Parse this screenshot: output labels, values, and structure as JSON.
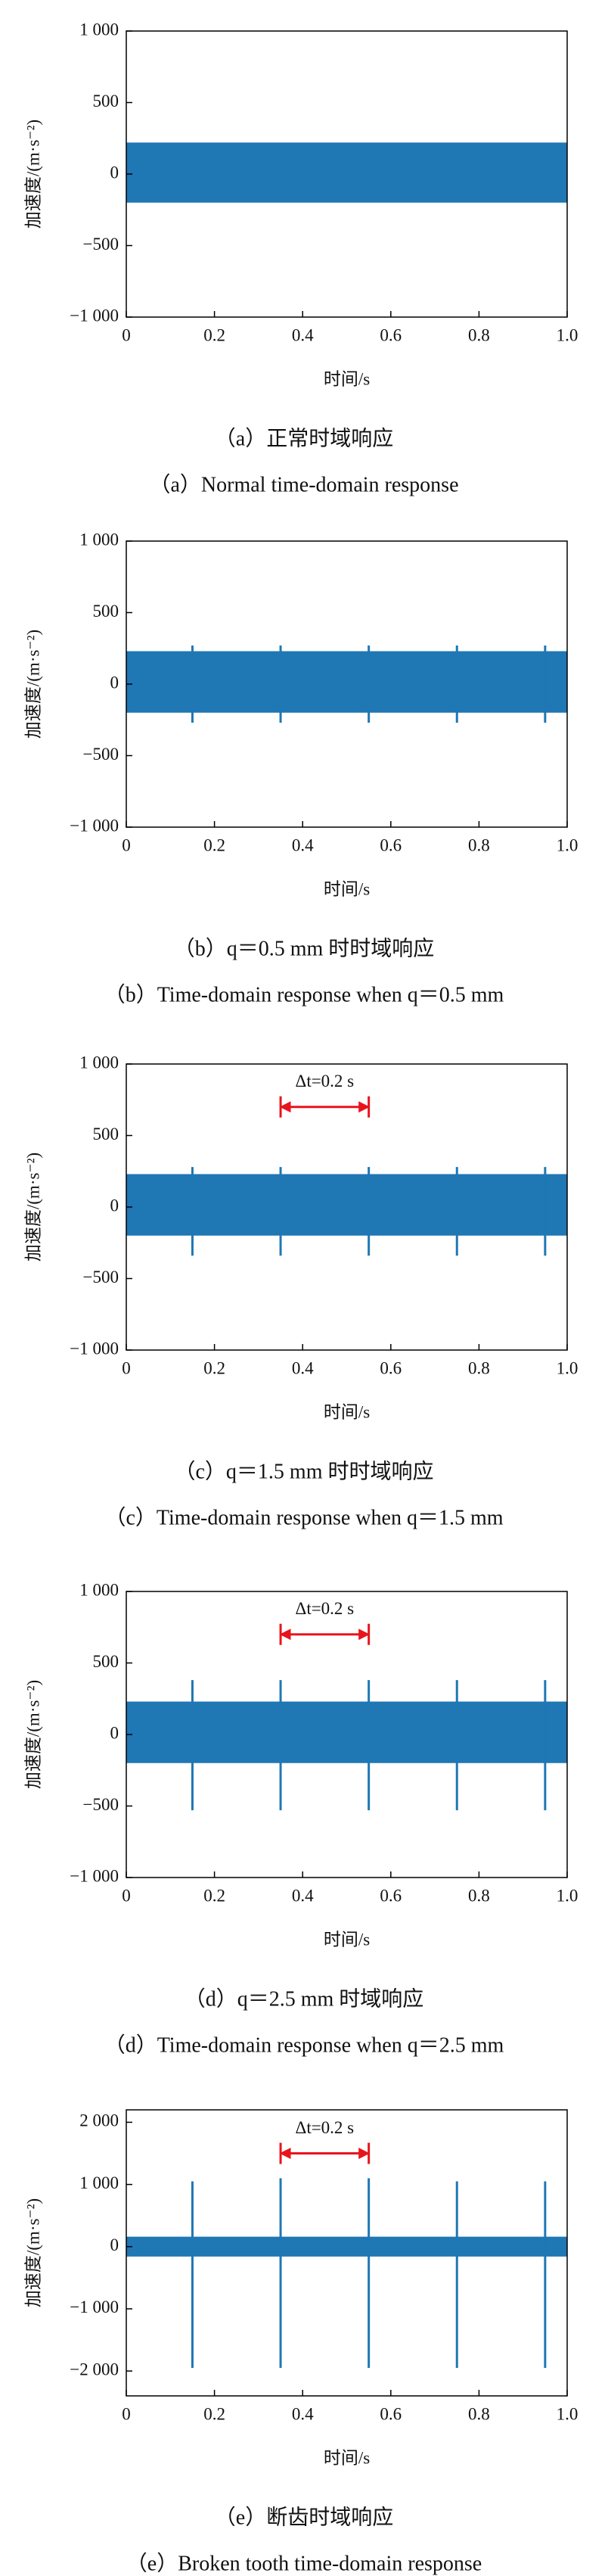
{
  "chart_data": [
    {
      "type": "line",
      "title": "（a）正常时域响应",
      "subtitle": "（a）Normal time-domain response",
      "x_label": "时间/s",
      "y_label": "加速度/(m·s⁻²)",
      "color": "#1f77b4",
      "xlim": [
        0,
        1
      ],
      "xticks": [
        0,
        0.2,
        0.4,
        0.6,
        0.8,
        {
          "value": 1,
          "label": "1.0"
        }
      ],
      "ylim": [
        -1000,
        1000
      ],
      "yticks": [
        {
          "value": -1000,
          "label": "−1 000"
        },
        {
          "value": -500,
          "label": "−500"
        },
        0,
        500,
        {
          "value": 1000,
          "label": "1 000"
        }
      ],
      "band": {
        "x": [
          0,
          1
        ],
        "upper": [
          220,
          220
        ],
        "lower": [
          -200,
          -200
        ]
      }
    },
    {
      "type": "line",
      "title": "（b）q＝0.5 mm 时时域响应",
      "subtitle": "（b）Time-domain response when q＝0.5 mm",
      "x_label": "时间/s",
      "y_label": "加速度/(m·s⁻²)",
      "color": "#1f77b4",
      "xlim": [
        0,
        1
      ],
      "xticks": [
        0,
        0.2,
        0.4,
        0.6,
        0.8,
        {
          "value": 1,
          "label": "1.0"
        }
      ],
      "ylim": [
        -1000,
        1000
      ],
      "yticks": [
        {
          "value": -1000,
          "label": "−1 000"
        },
        {
          "value": -500,
          "label": "−500"
        },
        0,
        500,
        {
          "value": 1000,
          "label": "1 000"
        }
      ],
      "band": {
        "x": [
          0,
          1
        ],
        "upper": [
          230,
          230
        ],
        "lower": [
          -200,
          -200
        ]
      },
      "spikes": {
        "x": [
          0.15,
          0.35,
          0.55,
          0.75,
          0.95
        ],
        "upper": [
          270,
          270,
          270,
          270,
          270
        ],
        "lower": [
          -270,
          -270,
          -270,
          -270,
          -270
        ]
      }
    },
    {
      "type": "line",
      "title": "（c）q＝1.5 mm 时时域响应",
      "subtitle": "（c）Time-domain response when q＝1.5 mm",
      "x_label": "时间/s",
      "y_label": "加速度/(m·s⁻²)",
      "color": "#1f77b4",
      "xlim": [
        0,
        1
      ],
      "xticks": [
        0,
        0.2,
        0.4,
        0.6,
        0.8,
        {
          "value": 1,
          "label": "1.0"
        }
      ],
      "ylim": [
        -1000,
        1000
      ],
      "yticks": [
        {
          "value": -1000,
          "label": "−1 000"
        },
        {
          "value": -500,
          "label": "−500"
        },
        0,
        500,
        {
          "value": 1000,
          "label": "1 000"
        }
      ],
      "band": {
        "x": [
          0,
          1
        ],
        "upper": [
          230,
          230
        ],
        "lower": [
          -200,
          -200
        ]
      },
      "spikes": {
        "x": [
          0.15,
          0.35,
          0.55,
          0.75,
          0.95
        ],
        "upper": [
          280,
          280,
          280,
          280,
          280
        ],
        "lower": [
          -340,
          -340,
          -340,
          -340,
          -340
        ]
      },
      "annotation": {
        "text": "Δt=0.2 s",
        "x": [
          0.35,
          0.55
        ],
        "y": 700
      }
    },
    {
      "type": "line",
      "title": "（d）q＝2.5 mm 时域响应",
      "subtitle": "（d）Time-domain response when q＝2.5 mm",
      "x_label": "时间/s",
      "y_label": "加速度/(m·s⁻²)",
      "color": "#1f77b4",
      "xlim": [
        0,
        1
      ],
      "xticks": [
        0,
        0.2,
        0.4,
        0.6,
        0.8,
        {
          "value": 1,
          "label": "1.0"
        }
      ],
      "ylim": [
        -1000,
        1000
      ],
      "yticks": [
        {
          "value": -1000,
          "label": "−1 000"
        },
        {
          "value": -500,
          "label": "−500"
        },
        0,
        500,
        {
          "value": 1000,
          "label": "1 000"
        }
      ],
      "band": {
        "x": [
          0,
          1
        ],
        "upper": [
          230,
          230
        ],
        "lower": [
          -200,
          -200
        ]
      },
      "spikes": {
        "x": [
          0.15,
          0.35,
          0.55,
          0.75,
          0.95
        ],
        "upper": [
          380,
          380,
          380,
          380,
          380
        ],
        "lower": [
          -530,
          -530,
          -530,
          -530,
          -530
        ]
      },
      "annotation": {
        "text": "Δt=0.2 s",
        "x": [
          0.35,
          0.55
        ],
        "y": 700
      }
    },
    {
      "type": "line",
      "title": "（e）断齿时域响应",
      "subtitle": "（e）Broken tooth time-domain response",
      "x_label": "时间/s",
      "y_label": "加速度/(m·s⁻²)",
      "color": "#1f77b4",
      "xlim": [
        0,
        1
      ],
      "xticks": [
        0,
        0.2,
        0.4,
        0.6,
        0.8,
        {
          "value": 1,
          "label": "1.0"
        }
      ],
      "ylim": [
        -2400,
        2200
      ],
      "yticks": [
        {
          "value": -2000,
          "label": "−2 000"
        },
        {
          "value": -1000,
          "label": "−1 000"
        },
        0,
        {
          "value": 1000,
          "label": "1 000"
        },
        {
          "value": 2000,
          "label": "2 000"
        }
      ],
      "band": {
        "x": [
          0,
          1
        ],
        "upper": [
          160,
          160
        ],
        "lower": [
          -160,
          -160
        ]
      },
      "spikes": {
        "x": [
          0.15,
          0.35,
          0.55,
          0.75,
          0.95
        ],
        "upper": [
          1050,
          1100,
          1100,
          1050,
          1050
        ],
        "lower": [
          -1950,
          -1950,
          -1950,
          -1950,
          -1950
        ]
      },
      "annotation": {
        "text": "Δt=0.2 s",
        "x": [
          0.35,
          0.55
        ],
        "y": 1500
      }
    }
  ]
}
